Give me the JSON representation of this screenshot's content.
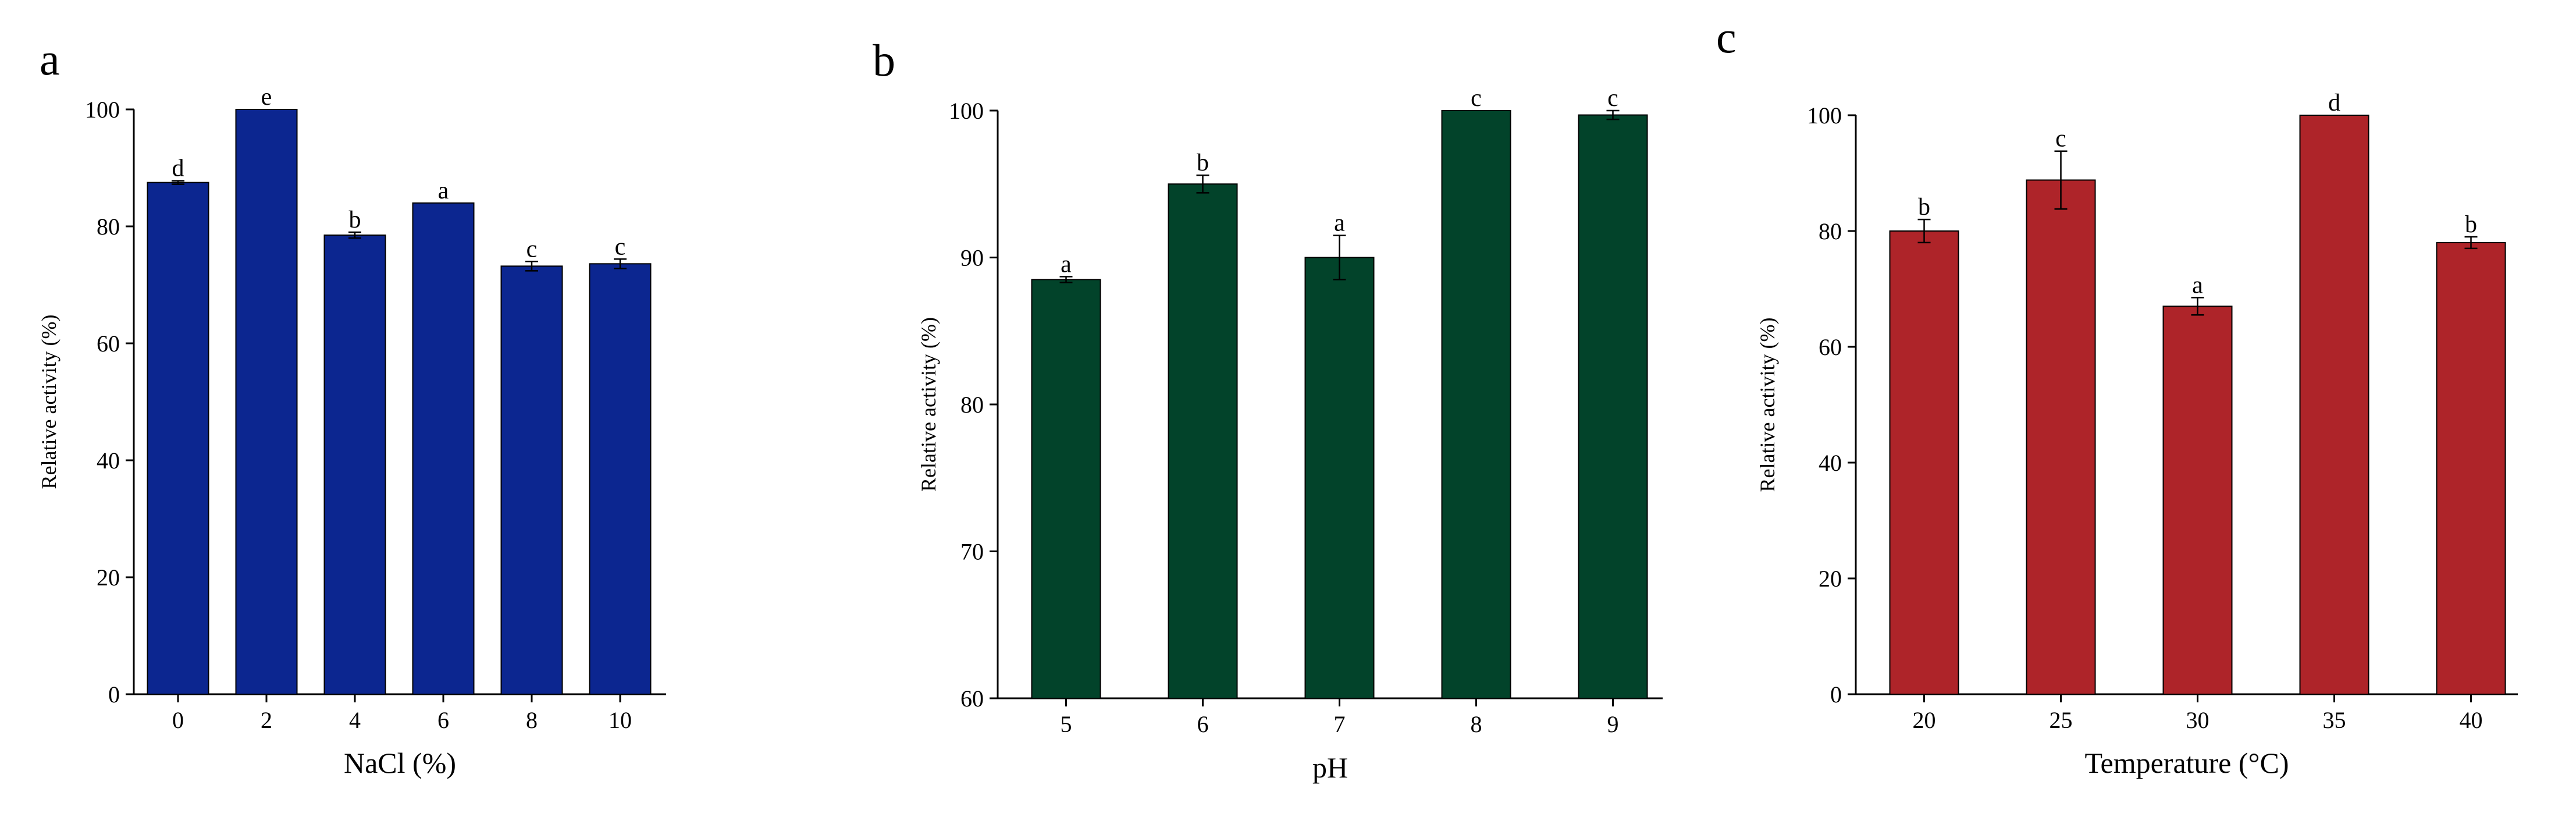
{
  "chart_data": [
    {
      "type": "bar",
      "panel_label": "a",
      "categories": [
        "0",
        "2",
        "4",
        "6",
        "8",
        "10"
      ],
      "values": [
        87.5,
        100,
        78.5,
        84,
        73.2,
        73.6
      ],
      "errors": [
        0.3,
        0,
        0.5,
        0,
        0.8,
        0.8
      ],
      "significance": [
        "d",
        "e",
        "b",
        "a",
        "c",
        "c"
      ],
      "xlabel": "NaCl (%)",
      "ylabel": "Relative activity (%)",
      "ylim": [
        0,
        100
      ],
      "yticks": [
        0,
        20,
        40,
        60,
        80,
        100
      ],
      "bar_color": "#0c2690",
      "grid": false
    },
    {
      "type": "bar",
      "panel_label": "b",
      "categories": [
        "5",
        "6",
        "7",
        "8",
        "9"
      ],
      "values": [
        88.5,
        95,
        90,
        100,
        99.7
      ],
      "errors": [
        0.2,
        0.6,
        1.5,
        0,
        0.3
      ],
      "significance": [
        "a",
        "b",
        "a",
        "c",
        "c"
      ],
      "xlabel": "pH",
      "ylabel": "Relative activity (%)",
      "ylim": [
        60,
        100
      ],
      "yticks": [
        60,
        70,
        80,
        90,
        100
      ],
      "bar_color": "#02432a",
      "grid": false
    },
    {
      "type": "bar",
      "panel_label": "c",
      "categories": [
        "20",
        "25",
        "30",
        "35",
        "40"
      ],
      "values": [
        80,
        88.8,
        67,
        100,
        78
      ],
      "errors": [
        2,
        5,
        1.5,
        0,
        1
      ],
      "significance": [
        "b",
        "c",
        "a",
        "d",
        "b"
      ],
      "xlabel": "Temperature (°C)",
      "ylabel": "Relative activity (%)",
      "ylim": [
        0,
        100
      ],
      "yticks": [
        0,
        20,
        40,
        60,
        80,
        100
      ],
      "bar_color": "#ae2429",
      "grid": false
    }
  ]
}
